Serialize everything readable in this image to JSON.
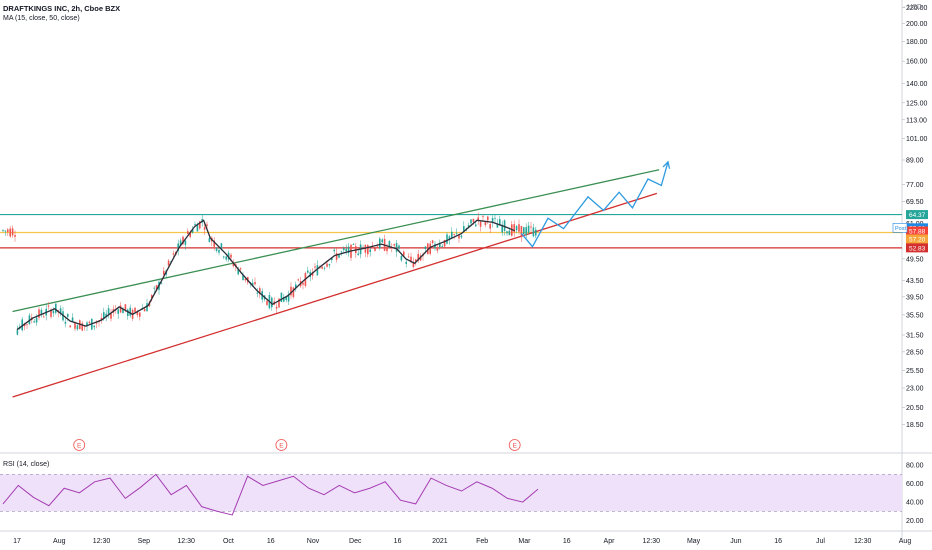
{
  "header": {
    "symbol_line": "DRAFTKINGS INC, 2h, Cboe BZX",
    "ma_line": "MA (15, close, 50, close)",
    "rsi_line": "RSI (14, close)",
    "currency": "USD"
  },
  "colors": {
    "candle_up": "#26a69a",
    "candle_down": "#ef5350",
    "ma": "#2a2e39",
    "teal_line": "#26a69a",
    "orange_line": "#f7c34a",
    "red_line": "#d32f2f",
    "channel_upper": "#3a8f52",
    "channel_lower": "#d32f2f",
    "projection": "#2f9be0",
    "rsi_line": "#a43db2",
    "rsi_band": "#f0e1fb"
  },
  "chart_data": {
    "type": "line",
    "title": "DRAFTKINGS INC, 2h, Cboe BZX",
    "price_scale": "log",
    "ylim": [
      16.2,
      222
    ],
    "y_ticks": [
      "220.00",
      "200.00",
      "180.00",
      "160.00",
      "140.00",
      "125.00",
      "113.00",
      "101.00",
      "89.00",
      "77.00",
      "69.50",
      "61.00",
      "49.50",
      "43.50",
      "39.50",
      "35.50",
      "31.50",
      "28.50",
      "25.50",
      "23.00",
      "20.50",
      "18.50"
    ],
    "x_ticks": [
      "17",
      "Aug",
      "12:30",
      "Sep",
      "12:30",
      "Oct",
      "16",
      "Nov",
      "Dec",
      "16",
      "2021",
      "Feb",
      "Mar",
      "16",
      "Apr",
      "12:30",
      "May",
      "Jun",
      "16",
      "Jul",
      "12:30",
      "Aug"
    ],
    "series": [
      {
        "name": "MA (15, close, 50, close)",
        "points": [
          [
            "Jul 17",
            32.5
          ],
          [
            "Jul 24",
            34.8
          ],
          [
            "Aug 3",
            36.8
          ],
          [
            "Aug 10",
            34.2
          ],
          [
            "Aug 17",
            33.2
          ],
          [
            "Aug 24",
            34.4
          ],
          [
            "Sep 1",
            37.2
          ],
          [
            "Sep 7",
            35.6
          ],
          [
            "Sep 14",
            37.5
          ],
          [
            "Sep 21",
            44.5
          ],
          [
            "Sep 28",
            53.0
          ],
          [
            "Oct 5",
            60.0
          ],
          [
            "Oct 9",
            62.2
          ],
          [
            "Oct 12",
            56.0
          ],
          [
            "Oct 19",
            51.0
          ],
          [
            "Oct 26",
            45.5
          ],
          [
            "Nov 2",
            41.0
          ],
          [
            "Nov 9",
            37.8
          ],
          [
            "Nov 16",
            39.8
          ],
          [
            "Nov 23",
            43.5
          ],
          [
            "Nov 30",
            47.0
          ],
          [
            "Dec 7",
            50.5
          ],
          [
            "Dec 14",
            51.8
          ],
          [
            "Dec 21",
            52.8
          ],
          [
            "Dec 28",
            54.0
          ],
          [
            "Jan 4",
            52.5
          ],
          [
            "Jan 8",
            49.5
          ],
          [
            "Jan 12",
            48.2
          ],
          [
            "Jan 19",
            53.0
          ],
          [
            "Jan 26",
            55.0
          ],
          [
            "Feb 2",
            57.5
          ],
          [
            "Feb 9",
            62.2
          ],
          [
            "Feb 16",
            61.5
          ],
          [
            "Feb 22",
            59.8
          ],
          [
            "Feb 26",
            58.5
          ]
        ]
      },
      {
        "name": "RSI (14, close)",
        "values": [
          38,
          58,
          45,
          36,
          55,
          50,
          62,
          66,
          44,
          56,
          70,
          48,
          58,
          35,
          30,
          26,
          68,
          58,
          63,
          68,
          55,
          48,
          58,
          50,
          55,
          62,
          42,
          38,
          66,
          58,
          52,
          62,
          55,
          44,
          40,
          54
        ]
      }
    ],
    "horizontal_levels": [
      {
        "price": 64.37,
        "label": "64.37",
        "color": "#26a69a"
      },
      {
        "price": 57.88,
        "label": "57.88",
        "color": "#f7c34a"
      },
      {
        "price": 52.83,
        "label": "52.83",
        "color": "#d32f2f"
      }
    ],
    "price_tags": [
      {
        "label": "57.88",
        "color": "#f44336",
        "price": 57.88
      },
      {
        "label": "57.20",
        "color": "#f7a53a",
        "price": 57.2
      }
    ],
    "post_tag": {
      "label": "Post",
      "value": "57.88",
      "price": 59.6
    },
    "trendlines": [
      {
        "name": "channel-upper",
        "points": [
          [
            "Jul 15",
            36.2
          ],
          [
            "May 2",
            84.0
          ]
        ]
      },
      {
        "name": "channel-lower",
        "points": [
          [
            "Jul 15",
            21.8
          ],
          [
            "May 1",
            73.0
          ]
        ]
      }
    ],
    "projection": [
      [
        "Mar 1",
        57.6
      ],
      [
        "Mar 6",
        53.2
      ],
      [
        "Mar 13",
        63.0
      ],
      [
        "Mar 20",
        59.2
      ],
      [
        "Mar 31",
        71.5
      ],
      [
        "Apr 7",
        66.0
      ],
      [
        "Apr 14",
        73.5
      ],
      [
        "Apr 20",
        67.0
      ],
      [
        "Apr 27",
        79.5
      ],
      [
        "May 3",
        76.5
      ],
      [
        "May 6",
        88.0
      ]
    ],
    "earnings_markers": [
      {
        "date": "Aug 14",
        "label": "E"
      },
      {
        "date": "Nov 13",
        "label": "E"
      },
      {
        "date": "Feb 26",
        "label": "E"
      }
    ],
    "rsi_axis": {
      "ticks": [
        "80.00",
        "60.00",
        "40.00",
        "20.00"
      ],
      "ylim": [
        14,
        90
      ],
      "band": [
        30,
        70
      ]
    }
  }
}
